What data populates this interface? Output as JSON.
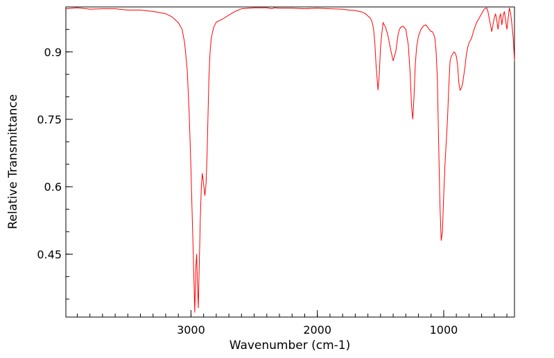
{
  "chart_data": {
    "type": "line",
    "title": "",
    "xlabel": "Wavenumber (cm-1)",
    "ylabel": "Relative Transmittance",
    "xlim": [
      3990,
      440
    ],
    "ylim": [
      0.31,
      1.0
    ],
    "x_reversed": true,
    "x_ticks": [
      3000,
      2000,
      1000
    ],
    "x_tick_labels": [
      "3000",
      "2000",
      "1000"
    ],
    "y_ticks": [
      0.9,
      0.75,
      0.6,
      0.45
    ],
    "y_tick_labels": [
      "0.9",
      "0.75",
      "0.6",
      "0.45"
    ],
    "grid": false,
    "line_color": "#ff0000",
    "series": [
      {
        "x": [
          3990,
          3900,
          3800,
          3700,
          3600,
          3500,
          3400,
          3300,
          3200,
          3150,
          3100,
          3070,
          3050,
          3030,
          3015,
          3000,
          2990,
          2980,
          2970,
          2962,
          2955,
          2948,
          2942,
          2935,
          2926,
          2918,
          2910,
          2900,
          2890,
          2880,
          2872,
          2865,
          2858,
          2850,
          2840,
          2820,
          2800,
          2750,
          2700,
          2650,
          2600,
          2500,
          2400,
          2360,
          2340,
          2300,
          2200,
          2100,
          2000,
          1900,
          1800,
          1750,
          1700,
          1650,
          1620,
          1600,
          1580,
          1565,
          1555,
          1545,
          1535,
          1520,
          1510,
          1500,
          1490,
          1480,
          1470,
          1460,
          1440,
          1420,
          1400,
          1380,
          1370,
          1360,
          1350,
          1340,
          1320,
          1300,
          1280,
          1265,
          1255,
          1245,
          1235,
          1225,
          1215,
          1200,
          1180,
          1160,
          1140,
          1120,
          1100,
          1090,
          1080,
          1070,
          1060,
          1050,
          1040,
          1030,
          1020,
          1010,
          1000,
          990,
          980,
          970,
          960,
          950,
          940,
          930,
          920,
          910,
          900,
          890,
          880,
          870,
          860,
          850,
          840,
          830,
          820,
          810,
          800,
          780,
          760,
          740,
          720,
          700,
          680,
          660,
          650,
          640,
          630,
          620,
          610,
          600,
          590,
          580,
          570,
          560,
          550,
          540,
          530,
          520,
          510,
          500,
          490,
          480,
          470,
          460,
          450,
          440
        ],
        "y": [
          0.996,
          0.998,
          0.995,
          0.996,
          0.996,
          0.993,
          0.993,
          0.99,
          0.985,
          0.978,
          0.965,
          0.95,
          0.92,
          0.86,
          0.77,
          0.64,
          0.53,
          0.43,
          0.32,
          0.42,
          0.45,
          0.38,
          0.33,
          0.42,
          0.53,
          0.6,
          0.63,
          0.605,
          0.58,
          0.61,
          0.68,
          0.76,
          0.84,
          0.895,
          0.93,
          0.955,
          0.966,
          0.973,
          0.982,
          0.99,
          0.996,
          0.998,
          0.998,
          0.996,
          0.998,
          0.997,
          0.997,
          0.996,
          0.997,
          0.996,
          0.995,
          0.993,
          0.992,
          0.989,
          0.985,
          0.98,
          0.975,
          0.965,
          0.95,
          0.92,
          0.87,
          0.815,
          0.85,
          0.91,
          0.94,
          0.965,
          0.96,
          0.955,
          0.935,
          0.905,
          0.88,
          0.9,
          0.92,
          0.94,
          0.95,
          0.955,
          0.957,
          0.95,
          0.915,
          0.85,
          0.78,
          0.75,
          0.8,
          0.87,
          0.91,
          0.935,
          0.95,
          0.958,
          0.96,
          0.952,
          0.945,
          0.945,
          0.94,
          0.93,
          0.9,
          0.84,
          0.7,
          0.56,
          0.48,
          0.5,
          0.58,
          0.65,
          0.7,
          0.75,
          0.82,
          0.88,
          0.89,
          0.895,
          0.9,
          0.898,
          0.89,
          0.87,
          0.83,
          0.815,
          0.82,
          0.83,
          0.85,
          0.87,
          0.895,
          0.91,
          0.92,
          0.93,
          0.95,
          0.965,
          0.975,
          0.985,
          0.995,
          0.998,
          0.99,
          0.975,
          0.96,
          0.945,
          0.96,
          0.975,
          0.985,
          0.97,
          0.95,
          0.975,
          0.985,
          0.96,
          0.98,
          0.99,
          0.97,
          0.95,
          0.975,
          0.998,
          0.985,
          0.96,
          0.93,
          0.88
        ]
      }
    ]
  }
}
